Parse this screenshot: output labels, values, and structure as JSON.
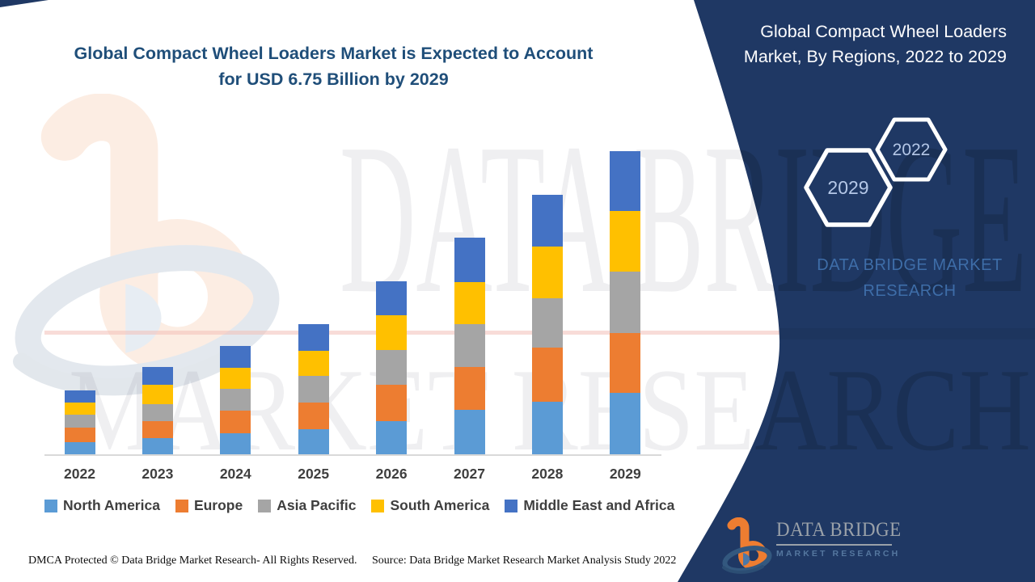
{
  "title": {
    "line1": "Global Compact Wheel Loaders Market is Expected to Account",
    "line2": "for USD 6.75 Billion by 2029"
  },
  "panel": {
    "heading": "Global Compact Wheel Loaders Market, By Regions, 2022 to 2029",
    "hexagons": [
      {
        "label": "2029"
      },
      {
        "label": "2022"
      }
    ],
    "brand_text": "DATA BRIDGE MARKET RESEARCH",
    "logo": {
      "title": "DATA BRIDGE",
      "subtitle": "MARKET RESEARCH"
    }
  },
  "watermark": {
    "line1": "DATA BRIDGE",
    "line2": "MARKET RESEARCH"
  },
  "footer": {
    "left": "DMCA Protected © Data Bridge Market Research- All Rights Reserved.",
    "right": "Source: Data Bridge Market Research Market Analysis Study 2022"
  },
  "chart_data": {
    "type": "bar",
    "stacked": true,
    "title": "Global Compact Wheel Loaders Market, By Regions, 2022 to 2029",
    "unit": "USD Billion",
    "categories": [
      "2022",
      "2023",
      "2024",
      "2025",
      "2026",
      "2027",
      "2028",
      "2029"
    ],
    "series": [
      {
        "name": "North America",
        "color": "#5B9BD5",
        "values": [
          0.27,
          0.36,
          0.47,
          0.56,
          0.74,
          0.99,
          1.17,
          1.37
        ]
      },
      {
        "name": "Europe",
        "color": "#ED7D31",
        "values": [
          0.32,
          0.38,
          0.5,
          0.59,
          0.81,
          0.95,
          1.21,
          1.33
        ]
      },
      {
        "name": "Asia Pacific",
        "color": "#A5A5A5",
        "values": [
          0.29,
          0.38,
          0.48,
          0.6,
          0.77,
          0.95,
          1.1,
          1.37
        ]
      },
      {
        "name": "South America",
        "color": "#FFC000",
        "values": [
          0.28,
          0.43,
          0.47,
          0.56,
          0.77,
          0.94,
          1.15,
          1.35
        ]
      },
      {
        "name": "Middle East and Africa",
        "color": "#4472C4",
        "values": [
          0.26,
          0.4,
          0.5,
          0.58,
          0.77,
          0.99,
          1.15,
          1.33
        ]
      }
    ],
    "totals": [
      1.42,
      1.95,
      2.42,
      2.89,
      3.86,
      4.82,
      5.78,
      6.75
    ],
    "ylim": [
      0,
      6.9
    ],
    "grid": false,
    "y_axis_visible": false,
    "legend_position": "bottom"
  },
  "colors": {
    "panel_navy": "#1F3864",
    "title_blue": "#1F4E79",
    "brand_blue": "#3E6DA8",
    "hex_label": "#B4C7E7",
    "axis_gray": "#D9D9D9"
  }
}
